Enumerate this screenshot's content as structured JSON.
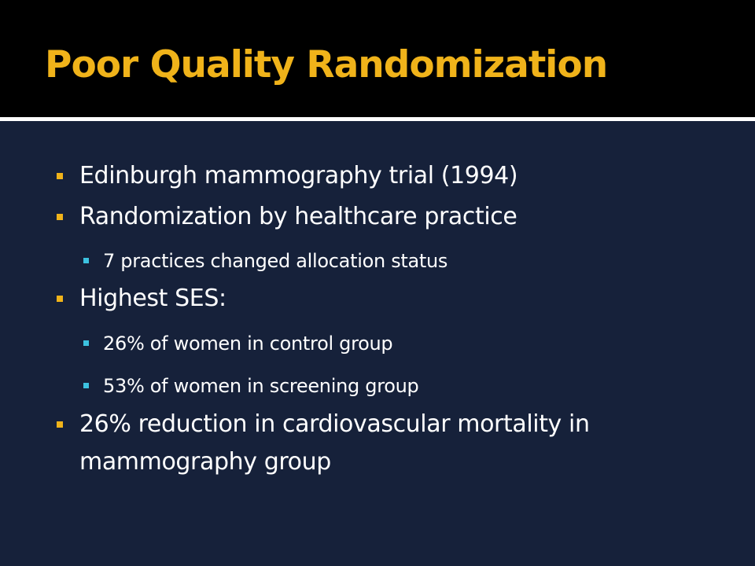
{
  "slide": {
    "title": "Poor Quality Randomization",
    "bullets": [
      {
        "level": 1,
        "text": "Edinburgh mammography trial (1994)"
      },
      {
        "level": 1,
        "text": "Randomization by healthcare practice"
      },
      {
        "level": 2,
        "text": "7 practices changed allocation status"
      },
      {
        "level": 1,
        "text": "Highest SES:"
      },
      {
        "level": 2,
        "text": "26% of women in control group"
      },
      {
        "level": 2,
        "text": "53% of women in screening group"
      },
      {
        "level": 1,
        "text": "26% reduction in cardiovascular mortality in"
      },
      {
        "level": 1,
        "text": "mammography group"
      }
    ]
  },
  "colors": {
    "background": "#16213a",
    "title_band": "#000000",
    "title_text": "#f0b31a",
    "body_text": "#ffffff",
    "bullet_level1": "#f0b31a",
    "bullet_level2": "#3cc2e0"
  }
}
